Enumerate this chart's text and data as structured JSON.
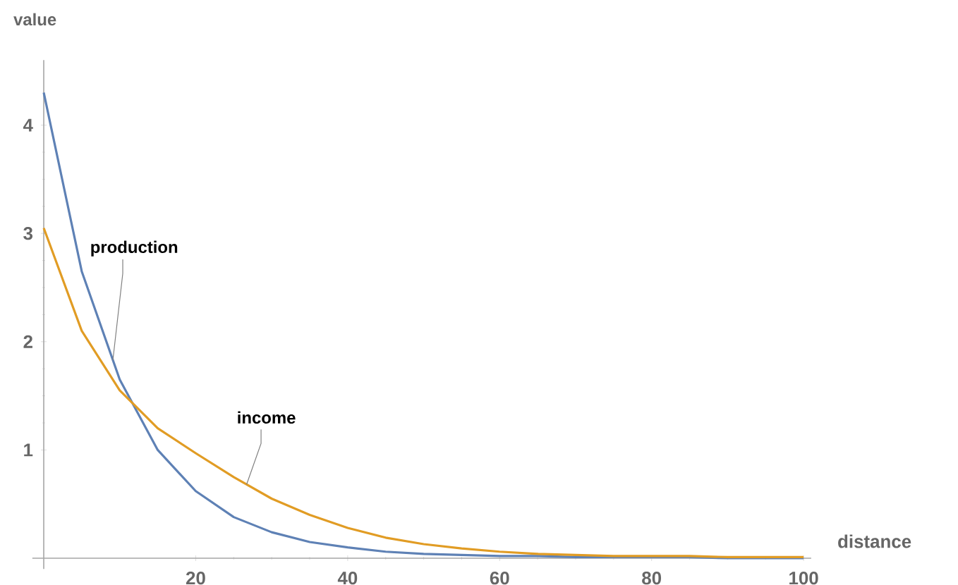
{
  "chart_data": {
    "type": "line",
    "xlabel": "distance",
    "ylabel": "value",
    "x": [
      0,
      5,
      10,
      15,
      20,
      25,
      30,
      35,
      40,
      45,
      50,
      55,
      60,
      65,
      70,
      75,
      80,
      85,
      90,
      95,
      100
    ],
    "series": [
      {
        "name": "production",
        "color": "#5e81b5",
        "values": [
          4.3,
          2.65,
          1.65,
          1.0,
          0.62,
          0.38,
          0.24,
          0.15,
          0.1,
          0.06,
          0.04,
          0.03,
          0.02,
          0.02,
          0.01,
          0.01,
          0.01,
          0.01,
          0.0,
          0.0,
          0.0
        ]
      },
      {
        "name": "income",
        "color": "#e19c24",
        "values": [
          3.05,
          2.1,
          1.55,
          1.2,
          0.97,
          0.75,
          0.55,
          0.4,
          0.28,
          0.19,
          0.13,
          0.09,
          0.06,
          0.04,
          0.03,
          0.02,
          0.02,
          0.02,
          0.01,
          0.01,
          0.01
        ]
      }
    ],
    "xlim": [
      -1.5,
      101
    ],
    "ylim": [
      -0.1,
      4.6
    ],
    "xticks": [
      20,
      40,
      60,
      80,
      100
    ],
    "yticks": [
      1,
      2,
      3,
      4
    ],
    "grid": false,
    "legend": false,
    "marker": "none",
    "line_style": "solid"
  }
}
